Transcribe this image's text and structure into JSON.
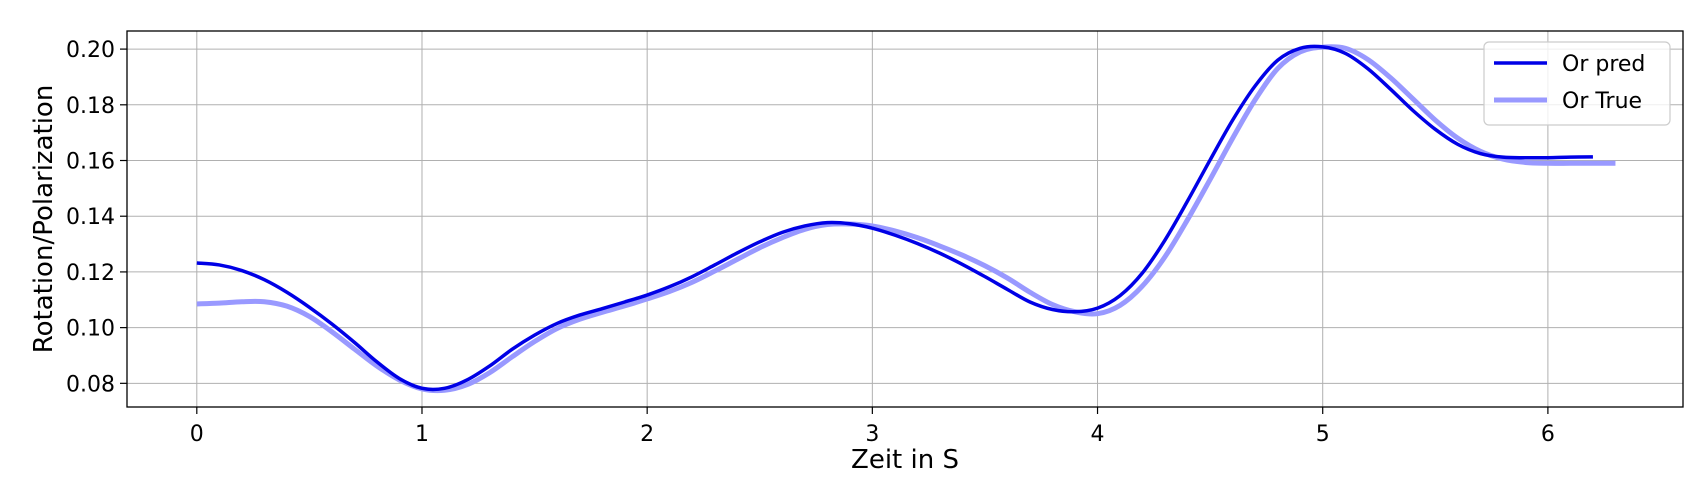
{
  "chart_data": {
    "type": "line",
    "title": "",
    "xlabel": "Zeit in S",
    "ylabel": "Rotation/Polarization",
    "xlim": [
      -0.31,
      6.6
    ],
    "ylim": [
      0.0715,
      0.2065
    ],
    "xticks": [
      0,
      1,
      2,
      3,
      4,
      5,
      6
    ],
    "yticks": [
      0.08,
      0.1,
      0.12,
      0.14,
      0.16,
      0.18,
      0.2
    ],
    "xtick_labels": [
      "0",
      "1",
      "2",
      "3",
      "4",
      "5",
      "6"
    ],
    "ytick_labels": [
      "0.08",
      "0.10",
      "0.12",
      "0.14",
      "0.16",
      "0.18",
      "0.20"
    ],
    "grid": true,
    "legend_position": "top-right",
    "series": [
      {
        "name": "Or pred",
        "color": "#0000e6",
        "x": [
          0,
          0.1,
          0.2,
          0.3,
          0.4,
          0.5,
          0.6,
          0.7,
          0.8,
          0.9,
          1.0,
          1.1,
          1.2,
          1.3,
          1.4,
          1.5,
          1.6,
          1.7,
          1.8,
          1.9,
          2.0,
          2.1,
          2.2,
          2.3,
          2.4,
          2.5,
          2.6,
          2.7,
          2.8,
          2.9,
          3.0,
          3.1,
          3.2,
          3.3,
          3.4,
          3.5,
          3.6,
          3.7,
          3.8,
          3.9,
          4.0,
          4.1,
          4.2,
          4.3,
          4.4,
          4.5,
          4.6,
          4.7,
          4.8,
          4.9,
          5.0,
          5.1,
          5.2,
          5.3,
          5.4,
          5.5,
          5.6,
          5.7,
          5.8,
          5.9,
          6.0,
          6.1,
          6.2
        ],
        "y": [
          0.1232,
          0.1225,
          0.1205,
          0.1172,
          0.1127,
          0.1073,
          0.1013,
          0.0947,
          0.0877,
          0.0817,
          0.0782,
          0.0782,
          0.0812,
          0.0862,
          0.0922,
          0.0973,
          0.1015,
          0.1045,
          0.1068,
          0.1092,
          0.1117,
          0.1147,
          0.1183,
          0.1225,
          0.1268,
          0.1308,
          0.1342,
          0.1365,
          0.1377,
          0.1373,
          0.1357,
          0.1332,
          0.1302,
          0.1267,
          0.1227,
          0.1183,
          0.1137,
          0.1092,
          0.1065,
          0.1057,
          0.107,
          0.1115,
          0.1197,
          0.1315,
          0.1455,
          0.1602,
          0.1745,
          0.1868,
          0.196,
          0.2003,
          0.2008,
          0.1985,
          0.193,
          0.1857,
          0.178,
          0.1712,
          0.1658,
          0.1625,
          0.1612,
          0.161,
          0.161,
          0.1612,
          0.1613
        ]
      },
      {
        "name": "Or True",
        "color": "#9999ff",
        "x": [
          0,
          0.1,
          0.2,
          0.3,
          0.4,
          0.5,
          0.6,
          0.7,
          0.8,
          0.9,
          1.0,
          1.1,
          1.2,
          1.3,
          1.4,
          1.5,
          1.6,
          1.7,
          1.8,
          1.9,
          2.0,
          2.1,
          2.2,
          2.3,
          2.4,
          2.5,
          2.6,
          2.7,
          2.8,
          2.9,
          3.0,
          3.1,
          3.2,
          3.3,
          3.4,
          3.5,
          3.6,
          3.7,
          3.8,
          3.9,
          4.0,
          4.1,
          4.2,
          4.3,
          4.4,
          4.5,
          4.6,
          4.7,
          4.8,
          4.9,
          5.0,
          5.1,
          5.2,
          5.3,
          5.4,
          5.5,
          5.6,
          5.7,
          5.8,
          5.9,
          6.0,
          6.1,
          6.2,
          6.3
        ],
        "y": [
          0.1085,
          0.1088,
          0.1093,
          0.1093,
          0.1077,
          0.104,
          0.0985,
          0.0923,
          0.0862,
          0.0812,
          0.078,
          0.0775,
          0.0795,
          0.0838,
          0.0895,
          0.095,
          0.0997,
          0.103,
          0.1055,
          0.1078,
          0.1103,
          0.113,
          0.1163,
          0.1203,
          0.1245,
          0.1287,
          0.1323,
          0.1353,
          0.137,
          0.1372,
          0.1365,
          0.1347,
          0.1323,
          0.1293,
          0.126,
          0.1222,
          0.1178,
          0.1127,
          0.1083,
          0.1057,
          0.105,
          0.108,
          0.115,
          0.1255,
          0.1388,
          0.1532,
          0.168,
          0.1818,
          0.193,
          0.199,
          0.2007,
          0.2003,
          0.1963,
          0.1898,
          0.1822,
          0.1745,
          0.168,
          0.1633,
          0.1605,
          0.1593,
          0.159,
          0.159,
          0.159,
          0.159
        ]
      }
    ]
  }
}
